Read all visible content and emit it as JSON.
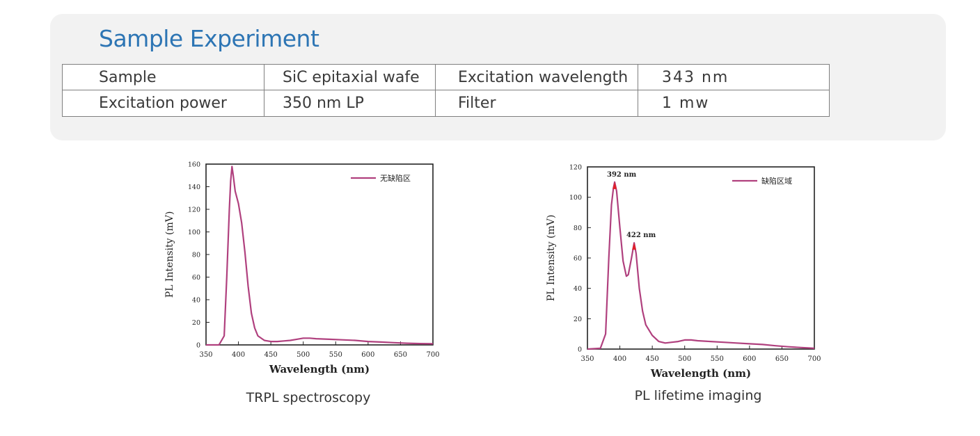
{
  "section": {
    "title": "Sample Experiment",
    "table": [
      [
        "Sample",
        "SiC epitaxial wafe",
        "Excitation wavelength",
        "343 nm"
      ],
      [
        "Excitation power",
        "350 nm LP",
        "Filter",
        "1 mw"
      ]
    ]
  },
  "colors": {
    "title": "#2d75b4",
    "panel": "#f2f2f2",
    "curve": "#b0407e",
    "peak": "#e0202a"
  },
  "chart_data": [
    {
      "type": "line",
      "caption": "TRPL spectroscopy",
      "xlabel": "Wavelength (nm)",
      "ylabel": "PL Intensity (mV)",
      "xlim": [
        350,
        700
      ],
      "ylim": [
        0,
        160
      ],
      "xticks": [
        350,
        400,
        450,
        500,
        550,
        600,
        650,
        700
      ],
      "yticks": [
        0,
        20,
        40,
        60,
        80,
        100,
        120,
        140,
        160
      ],
      "legend": "无缺陷区",
      "series": [
        {
          "name": "无缺陷区",
          "x": [
            350,
            370,
            378,
            382,
            386,
            388,
            390,
            392,
            395,
            400,
            405,
            410,
            415,
            420,
            425,
            430,
            440,
            450,
            460,
            470,
            480,
            490,
            500,
            510,
            520,
            540,
            560,
            580,
            600,
            620,
            640,
            660,
            680,
            700
          ],
          "y": [
            0,
            0,
            8,
            60,
            120,
            145,
            158,
            150,
            136,
            125,
            108,
            82,
            52,
            28,
            15,
            8,
            4,
            3,
            3,
            3.5,
            4,
            5,
            6,
            6,
            5.5,
            5,
            4.5,
            4,
            3,
            2.5,
            2,
            1.5,
            1.2,
            1
          ]
        }
      ]
    },
    {
      "type": "line",
      "caption": "PL lifetime imaging",
      "xlabel": "Wavelength (nm)",
      "ylabel": "PL Intensity (mV)",
      "xlim": [
        350,
        700
      ],
      "ylim": [
        0,
        120
      ],
      "xticks": [
        350,
        400,
        450,
        500,
        550,
        600,
        650,
        700
      ],
      "yticks": [
        0,
        20,
        40,
        60,
        80,
        100,
        120
      ],
      "legend": "缺陷区域",
      "annotations": [
        {
          "label": "392 nm",
          "x": 392,
          "y": 110
        },
        {
          "label": "422 nm",
          "x": 422,
          "y": 70
        }
      ],
      "series": [
        {
          "name": "缺陷区域",
          "x": [
            350,
            370,
            378,
            383,
            387,
            390,
            392,
            395,
            400,
            405,
            410,
            413,
            418,
            422,
            425,
            430,
            435,
            440,
            450,
            460,
            470,
            480,
            490,
            500,
            510,
            520,
            540,
            560,
            580,
            600,
            620,
            640,
            660,
            680,
            700
          ],
          "y": [
            0,
            0.5,
            10,
            60,
            95,
            106,
            110,
            104,
            80,
            58,
            48,
            49,
            60,
            70,
            63,
            40,
            25,
            16,
            9,
            5,
            4,
            4.5,
            5,
            6,
            6,
            5.5,
            5,
            4.5,
            4,
            3.5,
            3,
            2.2,
            1.5,
            1,
            0.5
          ]
        }
      ]
    }
  ]
}
